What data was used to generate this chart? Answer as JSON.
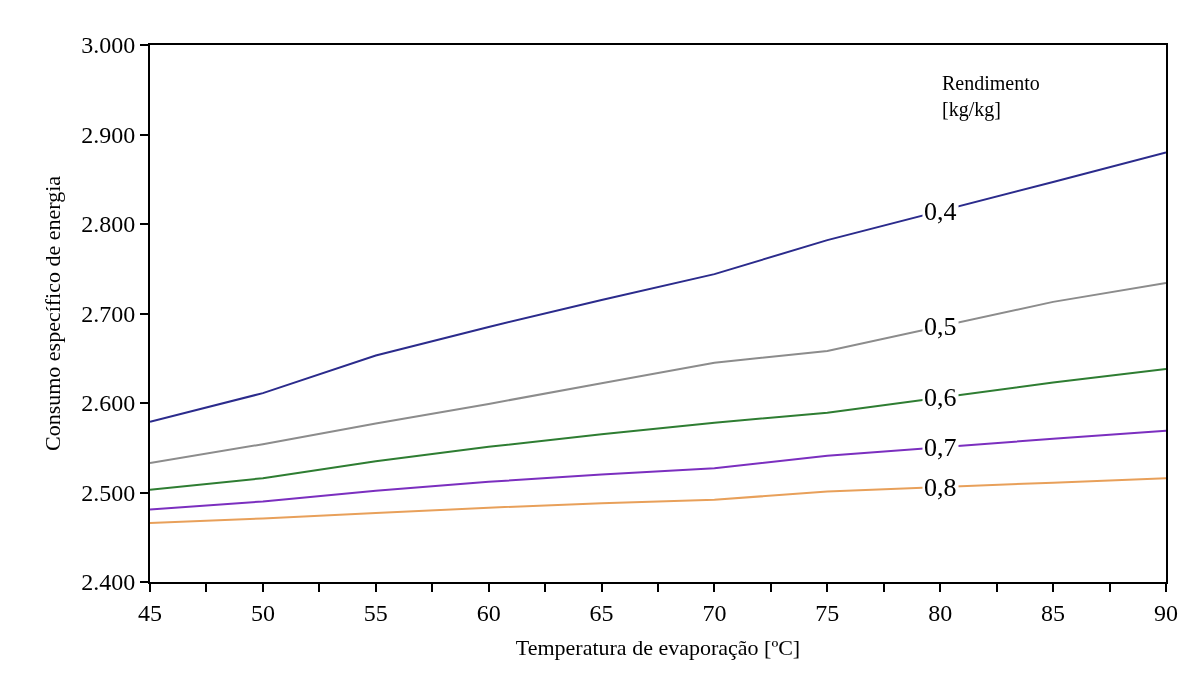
{
  "chart_data": {
    "type": "line",
    "xlabel": "Temperatura de evaporação [ºC]",
    "ylabel": "Consumo específico de energia",
    "legend_title": "Rendimento\n[kg/kg]",
    "x": [
      45,
      50,
      55,
      60,
      65,
      70,
      75,
      85,
      90
    ],
    "series": [
      {
        "name": "0,4",
        "color": "#2b2b8c",
        "values": [
          2579,
          2611,
          2653,
          2685,
          2715,
          2744,
          2782,
          2847,
          2880
        ]
      },
      {
        "name": "0,5",
        "color": "#8c8c8c",
        "values": [
          2533,
          2554,
          2577,
          2599,
          2622,
          2645,
          2658,
          2713,
          2734
        ]
      },
      {
        "name": "0,6",
        "color": "#2e7d32",
        "values": [
          2503,
          2516,
          2535,
          2551,
          2565,
          2578,
          2589,
          2623,
          2638
        ]
      },
      {
        "name": "0,7",
        "color": "#7b2fbf",
        "values": [
          2481,
          2490,
          2502,
          2512,
          2520,
          2527,
          2541,
          2560,
          2569
        ]
      },
      {
        "name": "0,8",
        "color": "#e8a05a",
        "values": [
          2466,
          2471,
          2477,
          2483,
          2488,
          2492,
          2501,
          2511,
          2516
        ]
      }
    ],
    "xlim": [
      45,
      90
    ],
    "xticks": [
      45,
      {
        "value": 47.5,
        "label": null
      },
      50,
      {
        "value": 52.5,
        "label": null
      },
      55,
      {
        "value": 57.5,
        "label": null
      },
      60,
      {
        "value": 62.5,
        "label": null
      },
      65,
      {
        "value": 67.5,
        "label": null
      },
      70,
      {
        "value": 72.5,
        "label": null
      },
      75,
      {
        "value": 77.5,
        "label": null
      },
      80,
      {
        "value": 82.5,
        "label": null
      },
      85,
      {
        "value": 87.5,
        "label": null
      },
      90
    ],
    "ylim": [
      2400,
      3000
    ],
    "yticks": [
      {
        "value": 2400,
        "label": "2.400"
      },
      {
        "value": 2500,
        "label": "2.500"
      },
      {
        "value": 2600,
        "label": "2.600"
      },
      {
        "value": 2700,
        "label": "2.700"
      },
      {
        "value": 2800,
        "label": "2.800"
      },
      {
        "value": 2900,
        "label": "2.900"
      },
      {
        "value": 3000,
        "label": "3.000"
      }
    ],
    "legend": false,
    "marker": "none",
    "line_style": "solid"
  }
}
